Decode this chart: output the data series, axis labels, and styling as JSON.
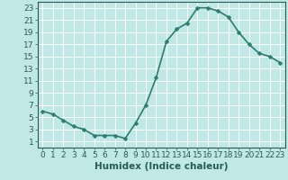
{
  "x": [
    0,
    1,
    2,
    3,
    4,
    5,
    6,
    7,
    8,
    9,
    10,
    11,
    12,
    13,
    14,
    15,
    16,
    17,
    18,
    19,
    20,
    21,
    22,
    23
  ],
  "y": [
    6.0,
    5.5,
    4.5,
    3.5,
    3.0,
    2.0,
    2.0,
    2.0,
    1.5,
    4.0,
    7.0,
    11.5,
    17.5,
    19.5,
    20.5,
    23.0,
    23.0,
    22.5,
    21.5,
    19.0,
    17.0,
    15.5,
    15.0,
    14.0
  ],
  "line_color": "#2d7d6e",
  "marker": "D",
  "marker_size": 2.5,
  "bg_color": "#c0e8e4",
  "grid_color": "#ffffff",
  "xlabel": "Humidex (Indice chaleur)",
  "xlim": [
    -0.5,
    23.5
  ],
  "ylim": [
    0,
    24
  ],
  "yticks": [
    1,
    3,
    5,
    7,
    9,
    11,
    13,
    15,
    17,
    19,
    21,
    23
  ],
  "xticks": [
    0,
    1,
    2,
    3,
    4,
    5,
    6,
    7,
    8,
    9,
    10,
    11,
    12,
    13,
    14,
    15,
    16,
    17,
    18,
    19,
    20,
    21,
    22,
    23
  ],
  "font_color": "#2a5a54",
  "xlabel_fontsize": 7.5,
  "tick_fontsize": 6.5,
  "line_width": 1.2,
  "spine_color": "#2a5a54"
}
